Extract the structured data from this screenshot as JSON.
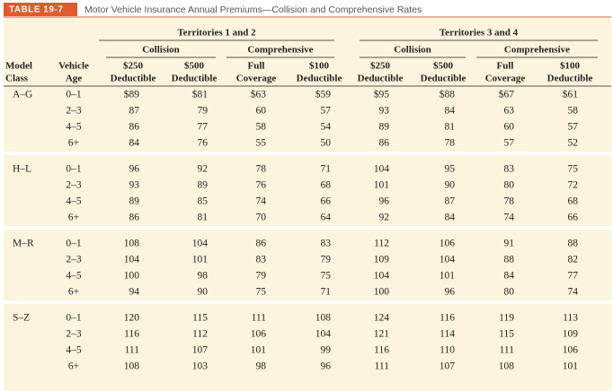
{
  "header": {
    "label": "TABLE 19-7",
    "title": "Motor Vehicle Insurance Annual Premiums—Collision and Comprehensive Rates"
  },
  "table": {
    "territories": [
      "Territories 1 and 2",
      "Territories 3 and 4"
    ],
    "coverages": [
      "Collision",
      "Comprehensive",
      "Collision",
      "Comprehensive"
    ],
    "columns": [
      [
        "Model",
        "Class"
      ],
      [
        "Vehicle",
        "Age"
      ],
      [
        "$250",
        "Deductible"
      ],
      [
        "$500",
        "Deductible"
      ],
      [
        "Full",
        "Coverage"
      ],
      [
        "$100",
        "Deductible"
      ],
      [
        "$250",
        "Deductible"
      ],
      [
        "$500",
        "Deductible"
      ],
      [
        "Full",
        "Coverage"
      ],
      [
        "$100",
        "Deductible"
      ]
    ],
    "groups": [
      {
        "model_class": "A–G",
        "rows": [
          [
            "0–1",
            "$89",
            "$81",
            "$63",
            "$59",
            "$95",
            "$88",
            "$67",
            "$61"
          ],
          [
            "2–3",
            "87",
            "79",
            "60",
            "57",
            "93",
            "84",
            "63",
            "58"
          ],
          [
            "4–5",
            "86",
            "77",
            "58",
            "54",
            "89",
            "81",
            "60",
            "57"
          ],
          [
            "6+",
            "84",
            "76",
            "55",
            "50",
            "86",
            "78",
            "57",
            "52"
          ]
        ]
      },
      {
        "model_class": "H–L",
        "rows": [
          [
            "0–1",
            "96",
            "92",
            "78",
            "71",
            "104",
            "95",
            "83",
            "75"
          ],
          [
            "2–3",
            "93",
            "89",
            "76",
            "68",
            "101",
            "90",
            "80",
            "72"
          ],
          [
            "4–5",
            "89",
            "85",
            "74",
            "66",
            "96",
            "87",
            "78",
            "68"
          ],
          [
            "6+",
            "86",
            "81",
            "70",
            "64",
            "92",
            "84",
            "74",
            "66"
          ]
        ]
      },
      {
        "model_class": "M–R",
        "rows": [
          [
            "0–1",
            "108",
            "104",
            "86",
            "83",
            "112",
            "106",
            "91",
            "88"
          ],
          [
            "2–3",
            "104",
            "101",
            "83",
            "79",
            "109",
            "104",
            "88",
            "82"
          ],
          [
            "4–5",
            "100",
            "98",
            "79",
            "75",
            "104",
            "101",
            "84",
            "77"
          ],
          [
            "6+",
            "94",
            "90",
            "75",
            "71",
            "100",
            "96",
            "80",
            "74"
          ]
        ]
      },
      {
        "model_class": "S–Z",
        "rows": [
          [
            "0–1",
            "120",
            "115",
            "111",
            "108",
            "124",
            "116",
            "119",
            "113"
          ],
          [
            "2–3",
            "116",
            "112",
            "106",
            "104",
            "121",
            "114",
            "115",
            "109"
          ],
          [
            "4–5",
            "111",
            "107",
            "101",
            "99",
            "116",
            "110",
            "111",
            "106"
          ],
          [
            "6+",
            "108",
            "103",
            "98",
            "96",
            "111",
            "107",
            "108",
            "101"
          ]
        ]
      }
    ]
  }
}
